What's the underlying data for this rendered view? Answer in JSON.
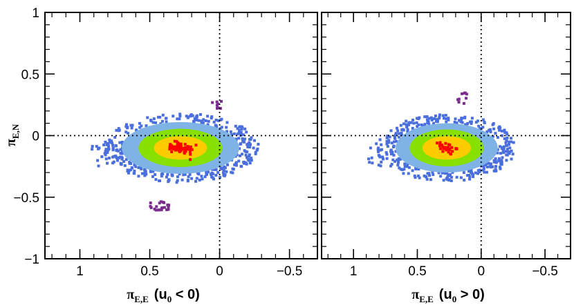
{
  "chart_data": [
    {
      "type": "scatter",
      "panel": "left",
      "title": "",
      "xlabel": {
        "symbol": "π",
        "subscript": "E,E",
        "condition": "(u",
        "condition_sub": "0",
        "condition_rest": " < 0)"
      },
      "ylabel": {
        "symbol": "π",
        "subscript": "E,N"
      },
      "xlim": [
        1.25,
        -0.7
      ],
      "ylim": [
        -1,
        1
      ],
      "xticks": [
        1,
        0.5,
        0,
        -0.5
      ],
      "xtick_labels": [
        "1",
        "0.5",
        "0",
        "−0.5"
      ],
      "yticks": [
        -1,
        -0.5,
        0,
        0.5,
        1
      ],
      "ytick_labels": [
        "−1",
        "−0.5",
        "0",
        "0.5",
        "1"
      ],
      "reference_lines": {
        "x": 0,
        "y": 0,
        "style": "dotted"
      },
      "center": [
        0.28,
        -0.1
      ],
      "layers": [
        {
          "name": "outer-scatter",
          "color": "#4a6fdd",
          "rx": 0.52,
          "ry": 0.26,
          "count": 320
        },
        {
          "name": "3-sigma",
          "color": "#7fb3e6",
          "rx": 0.42,
          "ry": 0.21
        },
        {
          "name": "2-sigma",
          "color": "#88e000",
          "rx": 0.3,
          "ry": 0.155
        },
        {
          "name": "1-sigma",
          "color": "#ffcc00",
          "rx": 0.19,
          "ry": 0.095
        },
        {
          "name": "best",
          "color": "#ff0000",
          "rx": 0.09,
          "ry": 0.045,
          "count": 70
        }
      ],
      "outlier_clusters": [
        {
          "color": "#7b2d8e",
          "x": 0.43,
          "y": -0.57,
          "sx": 0.07,
          "sy": 0.04,
          "count": 22
        },
        {
          "color": "#7b2d8e",
          "x": 0.02,
          "y": 0.25,
          "sx": 0.05,
          "sy": 0.03,
          "count": 8
        }
      ]
    },
    {
      "type": "scatter",
      "panel": "right",
      "title": "",
      "xlabel": {
        "symbol": "π",
        "subscript": "E,E",
        "condition": "(u",
        "condition_sub": "0",
        "condition_rest": " > 0)"
      },
      "xlim": [
        1.25,
        -0.7
      ],
      "ylim": [
        -1,
        1
      ],
      "xticks": [
        1,
        0.5,
        0,
        -0.5
      ],
      "xtick_labels": [
        "1",
        "0.5",
        "0",
        "−0.5"
      ],
      "yticks": [
        -1,
        -0.5,
        0,
        0.5,
        1
      ],
      "reference_lines": {
        "x": 0,
        "y": 0,
        "style": "dotted"
      },
      "center": [
        0.27,
        -0.1
      ],
      "layers": [
        {
          "name": "outer-scatter",
          "color": "#4a6fdd",
          "rx": 0.5,
          "ry": 0.25,
          "count": 300
        },
        {
          "name": "3-sigma",
          "color": "#7fb3e6",
          "rx": 0.4,
          "ry": 0.2
        },
        {
          "name": "2-sigma",
          "color": "#88e000",
          "rx": 0.29,
          "ry": 0.15
        },
        {
          "name": "1-sigma",
          "color": "#ffcc00",
          "rx": 0.19,
          "ry": 0.095
        },
        {
          "name": "best",
          "color": "#ff0000",
          "rx": 0.07,
          "ry": 0.04,
          "count": 30
        }
      ],
      "outlier_clusters": [
        {
          "color": "#7b2d8e",
          "x": 0.15,
          "y": 0.3,
          "sx": 0.04,
          "sy": 0.05,
          "count": 10
        }
      ]
    }
  ]
}
